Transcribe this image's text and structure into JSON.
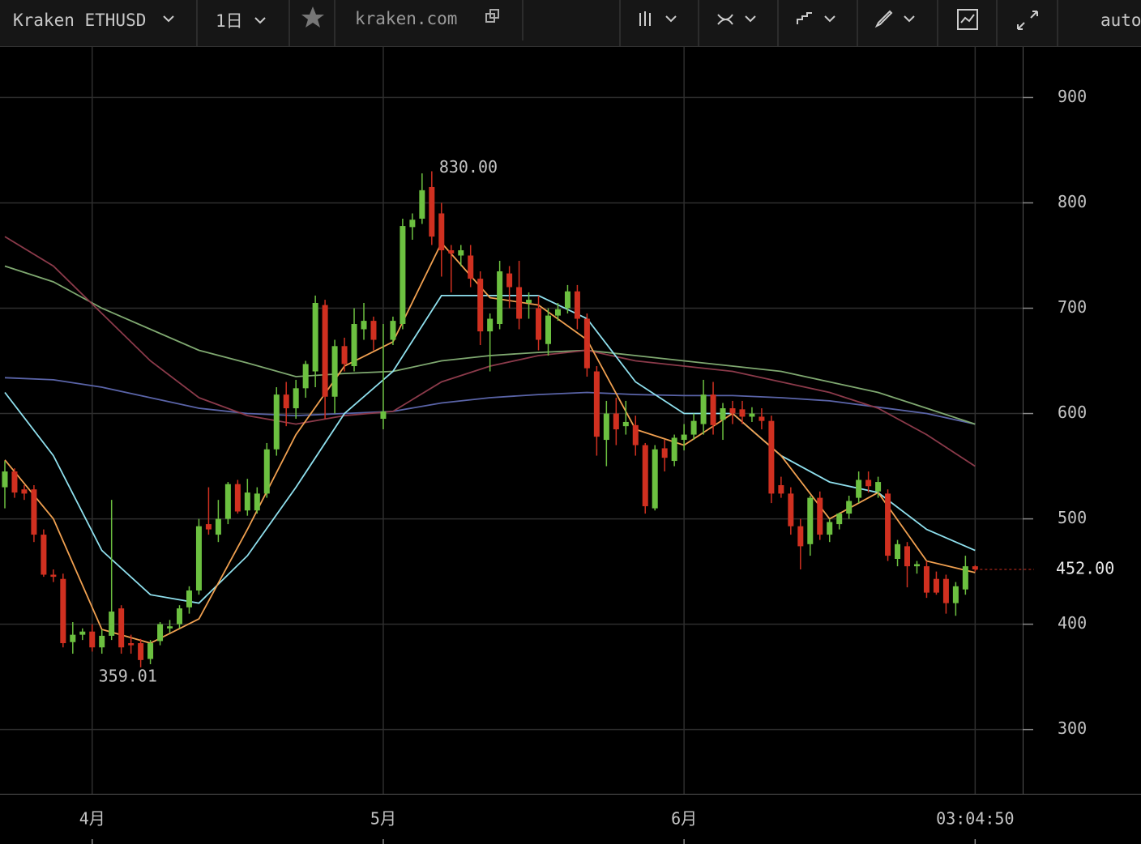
{
  "toolbar": {
    "symbol": "Kraken ETHUSD",
    "interval": "1日",
    "site": "kraken.com",
    "scale": "auto"
  },
  "chart_data": {
    "type": "candlestick",
    "up_color": "#6cc040",
    "down_color": "#d03020",
    "ylim": [
      239,
      948
    ],
    "yticks": [
      300,
      400,
      500,
      600,
      700,
      800,
      900
    ],
    "xlim": [
      -0.5,
      104.9
    ],
    "xticks": [
      {
        "value": 9,
        "label": "4月"
      },
      {
        "value": 39,
        "label": "5月"
      },
      {
        "value": 70,
        "label": "6月"
      },
      {
        "value": 100,
        "label": "03:04:50"
      }
    ],
    "grid": true,
    "high_label": "830.00",
    "low_label": "359.01",
    "last_price_label": "452.00",
    "candles": [
      [
        530,
        555,
        510,
        545
      ],
      [
        545,
        548,
        520,
        525
      ],
      [
        528,
        532,
        518,
        524
      ],
      [
        528,
        532,
        478,
        485
      ],
      [
        485,
        490,
        445,
        447
      ],
      [
        447,
        452,
        440,
        445
      ],
      [
        443,
        448,
        378,
        382
      ],
      [
        383,
        402,
        372,
        390
      ],
      [
        390,
        396,
        385,
        393
      ],
      [
        393,
        400,
        374,
        378
      ],
      [
        378,
        395,
        372,
        389
      ],
      [
        389,
        518,
        385,
        412
      ],
      [
        415,
        418,
        372,
        378
      ],
      [
        382,
        390,
        372,
        380
      ],
      [
        382,
        386,
        359.01,
        366
      ],
      [
        367,
        385,
        362,
        382
      ],
      [
        384,
        402,
        380,
        400
      ],
      [
        396,
        404,
        392,
        398
      ],
      [
        400,
        418,
        396,
        415
      ],
      [
        416,
        436,
        410,
        432
      ],
      [
        432,
        500,
        428,
        493
      ],
      [
        495,
        530,
        485,
        490
      ],
      [
        485,
        518,
        478,
        500
      ],
      [
        500,
        535,
        495,
        533
      ],
      [
        533,
        537,
        505,
        507
      ],
      [
        508,
        538,
        503,
        525
      ],
      [
        508,
        530,
        505,
        524
      ],
      [
        524,
        572,
        520,
        566
      ],
      [
        566,
        625,
        560,
        618
      ],
      [
        618,
        630,
        588,
        605
      ],
      [
        605,
        632,
        595,
        624
      ],
      [
        624,
        650,
        615,
        647
      ],
      [
        640,
        712,
        625,
        705
      ],
      [
        703,
        708,
        595,
        616
      ],
      [
        616,
        670,
        600,
        664
      ],
      [
        664,
        672,
        640,
        647
      ],
      [
        645,
        700,
        640,
        685
      ],
      [
        680,
        705,
        670,
        688
      ],
      [
        688,
        692,
        660,
        670
      ],
      [
        595,
        685,
        585,
        602
      ],
      [
        670,
        692,
        665,
        688
      ],
      [
        685,
        785,
        680,
        778
      ],
      [
        777,
        790,
        765,
        784
      ],
      [
        785,
        828,
        780,
        812
      ],
      [
        815,
        830,
        760,
        768
      ],
      [
        790,
        800,
        730,
        755
      ],
      [
        755,
        760,
        715,
        752
      ],
      [
        750,
        760,
        740,
        755
      ],
      [
        750,
        760,
        720,
        728
      ],
      [
        728,
        735,
        665,
        678
      ],
      [
        678,
        695,
        640,
        690
      ],
      [
        685,
        745,
        680,
        735
      ],
      [
        733,
        740,
        700,
        720
      ],
      [
        720,
        745,
        680,
        690
      ],
      [
        705,
        715,
        690,
        708
      ],
      [
        700,
        712,
        660,
        670
      ],
      [
        666,
        700,
        655,
        693
      ],
      [
        693,
        705,
        688,
        699
      ],
      [
        700,
        722,
        695,
        716
      ],
      [
        716,
        722,
        680,
        690
      ],
      [
        690,
        695,
        635,
        643
      ],
      [
        640,
        645,
        560,
        578
      ],
      [
        575,
        612,
        550,
        600
      ],
      [
        600,
        615,
        570,
        585
      ],
      [
        588,
        612,
        580,
        592
      ],
      [
        589,
        598,
        560,
        570
      ],
      [
        570,
        572,
        505,
        512
      ],
      [
        510,
        570,
        508,
        566
      ],
      [
        567,
        575,
        545,
        558
      ],
      [
        555,
        580,
        550,
        577
      ],
      [
        575,
        590,
        565,
        580
      ],
      [
        580,
        600,
        575,
        593
      ],
      [
        590,
        632,
        580,
        618
      ],
      [
        618,
        630,
        580,
        589
      ],
      [
        594,
        610,
        575,
        605
      ],
      [
        605,
        612,
        590,
        600
      ],
      [
        604,
        612,
        590,
        597
      ],
      [
        597,
        606,
        592,
        600
      ],
      [
        597,
        605,
        585,
        593
      ],
      [
        593,
        598,
        515,
        524
      ],
      [
        532,
        540,
        520,
        524
      ],
      [
        524,
        530,
        485,
        493
      ],
      [
        493,
        500,
        452,
        474
      ],
      [
        476,
        522,
        465,
        520
      ],
      [
        520,
        526,
        480,
        485
      ],
      [
        485,
        500,
        478,
        497
      ],
      [
        495,
        506,
        490,
        505
      ],
      [
        505,
        522,
        500,
        517
      ],
      [
        520,
        545,
        515,
        537
      ],
      [
        537,
        545,
        525,
        531
      ],
      [
        526,
        540,
        520,
        535
      ],
      [
        524,
        528,
        460,
        465
      ],
      [
        462,
        480,
        455,
        476
      ],
      [
        474,
        478,
        435,
        455
      ],
      [
        455,
        460,
        448,
        457
      ],
      [
        455,
        460,
        425,
        430
      ],
      [
        443,
        450,
        428,
        430
      ],
      [
        443,
        447,
        410,
        420
      ],
      [
        420,
        440,
        408,
        436
      ],
      [
        433,
        465,
        428,
        455
      ],
      [
        455,
        456,
        450,
        452
      ]
    ],
    "series": [
      {
        "color": "#5a64a8",
        "x": [
          0,
          5,
          10,
          15,
          20,
          25,
          30,
          35,
          40,
          45,
          50,
          55,
          60,
          65,
          70,
          75,
          80,
          85,
          90,
          95,
          100
        ],
        "values": [
          634,
          632,
          625,
          615,
          605,
          600,
          598,
          600,
          602,
          610,
          615,
          618,
          620,
          618,
          617,
          617,
          615,
          612,
          606,
          600,
          590
        ]
      },
      {
        "color": "#7fa870",
        "x": [
          0,
          5,
          10,
          15,
          20,
          25,
          30,
          35,
          40,
          45,
          50,
          55,
          60,
          65,
          70,
          75,
          80,
          85,
          90,
          95,
          100
        ],
        "values": [
          740,
          725,
          700,
          680,
          660,
          648,
          635,
          638,
          640,
          650,
          655,
          658,
          660,
          655,
          650,
          645,
          640,
          630,
          620,
          605,
          590
        ]
      },
      {
        "color": "#8b3a4a",
        "x": [
          0,
          5,
          10,
          15,
          20,
          25,
          30,
          35,
          40,
          45,
          50,
          55,
          60,
          65,
          70,
          75,
          80,
          85,
          90,
          95,
          100
        ],
        "values": [
          768,
          740,
          695,
          650,
          615,
          598,
          590,
          598,
          602,
          630,
          645,
          655,
          660,
          650,
          645,
          640,
          630,
          620,
          605,
          580,
          550
        ]
      },
      {
        "color": "#8fe0ee",
        "x": [
          0,
          5,
          10,
          15,
          20,
          25,
          30,
          35,
          40,
          45,
          50,
          55,
          60,
          65,
          70,
          75,
          80,
          85,
          90,
          95,
          100
        ],
        "values": [
          620,
          560,
          470,
          428,
          420,
          465,
          530,
          600,
          640,
          712,
          712,
          712,
          690,
          630,
          600,
          600,
          560,
          535,
          525,
          490,
          470
        ]
      },
      {
        "color": "#f0a050",
        "x": [
          0,
          5,
          10,
          15,
          20,
          25,
          30,
          35,
          40,
          45,
          50,
          55,
          60,
          65,
          70,
          75,
          80,
          85,
          90,
          95,
          100
        ],
        "values": [
          556,
          500,
          395,
          382,
          405,
          490,
          580,
          645,
          668,
          762,
          710,
          703,
          670,
          585,
          570,
          600,
          560,
          500,
          525,
          460,
          449
        ]
      }
    ]
  }
}
